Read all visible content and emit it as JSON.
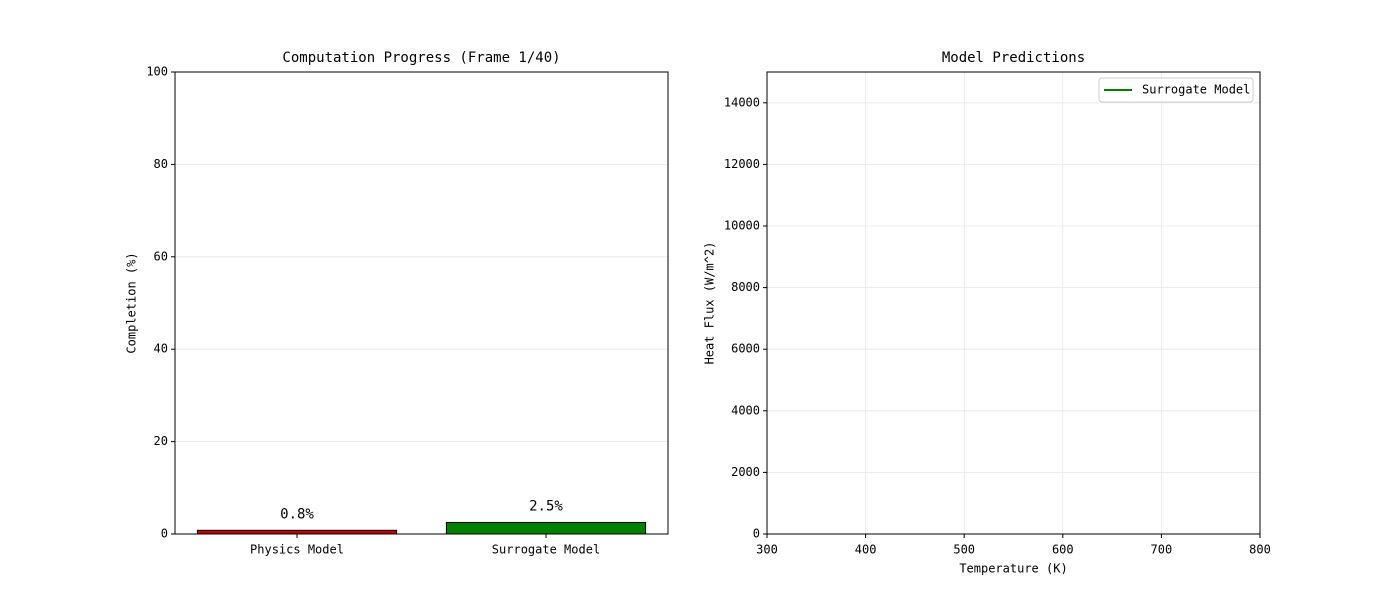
{
  "chart_data": [
    {
      "type": "bar",
      "title": "Computation Progress (Frame 1/40)",
      "y_label": "Completion (%)",
      "categories": [
        "Physics Model",
        "Surrogate Model"
      ],
      "values": [
        0.8,
        2.5
      ],
      "value_labels": [
        "0.8%",
        "2.5%"
      ],
      "colors": [
        "#c00000",
        "#008000"
      ],
      "ylim": [
        0,
        100
      ],
      "yticks": [
        0,
        20,
        40,
        60,
        80,
        100
      ],
      "grid": "y"
    },
    {
      "type": "line",
      "title": "Model Predictions",
      "x_label": "Temperature (K)",
      "y_label": "Heat Flux (W/m^2)",
      "x": [],
      "series": [
        {
          "name": "Surrogate Model",
          "color": "#008000",
          "values": []
        }
      ],
      "xlim": [
        300,
        800
      ],
      "xticks": [
        300,
        400,
        500,
        600,
        700,
        800
      ],
      "ylim": [
        0,
        15000
      ],
      "yticks": [
        0,
        2000,
        4000,
        6000,
        8000,
        10000,
        12000,
        14000
      ],
      "grid": "both",
      "legend": "upper right"
    }
  ]
}
